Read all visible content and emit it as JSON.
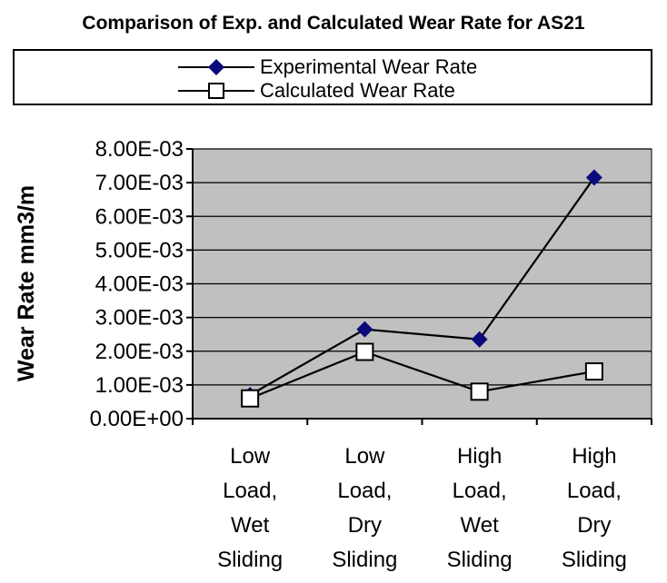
{
  "chart_data": {
    "type": "line",
    "title": "Comparison of Exp. and Calculated Wear Rate for AS21",
    "ylabel": "Wear Rate mm3/m",
    "xlabel": "",
    "ylim": [
      0,
      0.008
    ],
    "yticks": [
      "0.00E+00",
      "1.00E-03",
      "2.00E-03",
      "3.00E-03",
      "4.00E-03",
      "5.00E-03",
      "6.00E-03",
      "7.00E-03",
      "8.00E-03"
    ],
    "categories": [
      [
        "Low",
        "Load,",
        "Wet",
        "Sliding"
      ],
      [
        "Low",
        "Load,",
        "Dry",
        "Sliding"
      ],
      [
        "High",
        "Load,",
        "Wet",
        "Sliding"
      ],
      [
        "High",
        "Load,",
        "Dry",
        "Sliding"
      ]
    ],
    "series": [
      {
        "name": "Experimental Wear Rate",
        "marker": "diamond",
        "color": "#0a0a7a",
        "values": [
          0.0007,
          0.00265,
          0.00235,
          0.00715
        ]
      },
      {
        "name": "Calculated Wear Rate",
        "marker": "square",
        "color": "#ffffff",
        "values": [
          0.0006,
          0.00198,
          0.0008,
          0.0014
        ]
      }
    ],
    "grid": true,
    "legend": "top",
    "plot_background": "#c0c0c0"
  }
}
